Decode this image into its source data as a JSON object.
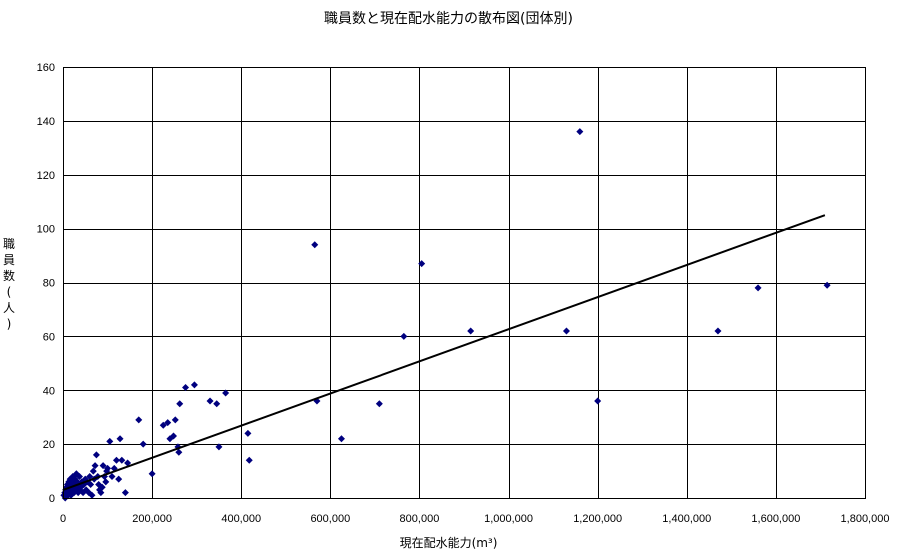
{
  "chart_data": {
    "type": "scatter",
    "title": "職員数と現在配水能力の散布図(団体別)",
    "xlabel": "現在配水能力(m³)",
    "ylabel": "職員数(人)",
    "xlim": [
      0,
      1800000
    ],
    "ylim": [
      0,
      160
    ],
    "x_ticks": [
      0,
      200000,
      400000,
      600000,
      800000,
      1000000,
      1200000,
      1400000,
      1600000,
      1800000
    ],
    "x_tick_labels": [
      "0",
      "200,000",
      "400,000",
      "600,000",
      "800,000",
      "1,000,000",
      "1,200,000",
      "1,400,000",
      "1,600,000",
      "1,800,000"
    ],
    "y_ticks": [
      0,
      20,
      40,
      60,
      80,
      100,
      120,
      140,
      160
    ],
    "y_tick_labels": [
      "0",
      "20",
      "40",
      "60",
      "80",
      "100",
      "120",
      "140",
      "160"
    ],
    "grid": true,
    "marker_color": "#00007f",
    "trendline_color": "#000000",
    "trendline": {
      "x": [
        0,
        1710000
      ],
      "y": [
        3,
        105
      ]
    },
    "points": [
      [
        2000,
        1
      ],
      [
        4000,
        2
      ],
      [
        5000,
        0
      ],
      [
        6000,
        3
      ],
      [
        7000,
        1
      ],
      [
        8000,
        4
      ],
      [
        9000,
        2
      ],
      [
        10000,
        5
      ],
      [
        11000,
        3
      ],
      [
        12000,
        1
      ],
      [
        13000,
        6
      ],
      [
        14000,
        2
      ],
      [
        15000,
        4
      ],
      [
        16000,
        7
      ],
      [
        17000,
        3
      ],
      [
        18000,
        1
      ],
      [
        19000,
        5
      ],
      [
        20000,
        2
      ],
      [
        21000,
        6
      ],
      [
        22000,
        8
      ],
      [
        23000,
        3
      ],
      [
        24000,
        4
      ],
      [
        25000,
        2
      ],
      [
        26000,
        5
      ],
      [
        27000,
        7
      ],
      [
        28000,
        3
      ],
      [
        30000,
        9
      ],
      [
        31000,
        4
      ],
      [
        32000,
        6
      ],
      [
        34000,
        2
      ],
      [
        35000,
        5
      ],
      [
        37000,
        8
      ],
      [
        38000,
        3
      ],
      [
        40000,
        4
      ],
      [
        42000,
        6
      ],
      [
        45000,
        2
      ],
      [
        47000,
        5
      ],
      [
        50000,
        7
      ],
      [
        52000,
        3
      ],
      [
        55000,
        6
      ],
      [
        58000,
        2
      ],
      [
        60000,
        8
      ],
      [
        62000,
        5
      ],
      [
        65000,
        1
      ],
      [
        68000,
        10
      ],
      [
        70000,
        7
      ],
      [
        72000,
        12
      ],
      [
        75000,
        16
      ],
      [
        78000,
        8
      ],
      [
        80000,
        5
      ],
      [
        82000,
        3
      ],
      [
        85000,
        2
      ],
      [
        88000,
        4
      ],
      [
        90000,
        12
      ],
      [
        93000,
        8
      ],
      [
        96000,
        6
      ],
      [
        98000,
        10
      ],
      [
        100000,
        11
      ],
      [
        105000,
        21
      ],
      [
        110000,
        8
      ],
      [
        115000,
        11
      ],
      [
        120000,
        14
      ],
      [
        125000,
        7
      ],
      [
        128000,
        22
      ],
      [
        132000,
        14
      ],
      [
        140000,
        2
      ],
      [
        145000,
        13
      ],
      [
        170000,
        29
      ],
      [
        180000,
        20
      ],
      [
        200000,
        9
      ],
      [
        225000,
        27
      ],
      [
        235000,
        28
      ],
      [
        240000,
        22
      ],
      [
        248000,
        23
      ],
      [
        252000,
        29
      ],
      [
        258000,
        19
      ],
      [
        260000,
        17
      ],
      [
        262000,
        35
      ],
      [
        275000,
        41
      ],
      [
        295000,
        42
      ],
      [
        330000,
        36
      ],
      [
        345000,
        35
      ],
      [
        350000,
        19
      ],
      [
        365000,
        39
      ],
      [
        415000,
        24
      ],
      [
        418000,
        14
      ],
      [
        565000,
        94
      ],
      [
        570000,
        36
      ],
      [
        625000,
        22
      ],
      [
        710000,
        35
      ],
      [
        765000,
        60
      ],
      [
        805000,
        87
      ],
      [
        915000,
        62
      ],
      [
        1130000,
        62
      ],
      [
        1160000,
        136
      ],
      [
        1200000,
        36
      ],
      [
        1470000,
        62
      ],
      [
        1560000,
        78
      ],
      [
        1715000,
        79
      ]
    ]
  }
}
